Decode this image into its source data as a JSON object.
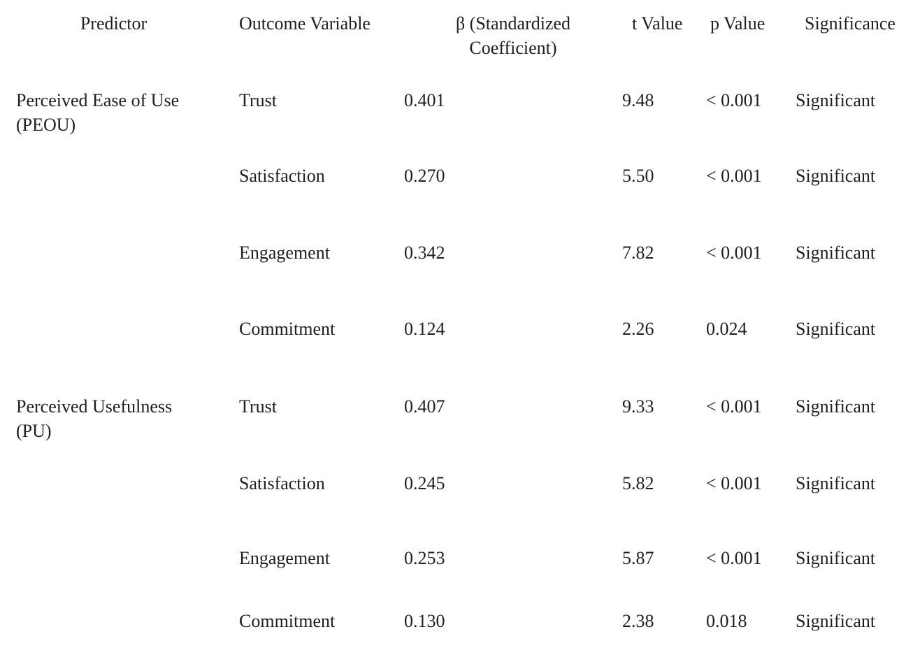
{
  "page": {
    "background_color": "#ffffff",
    "text_color": "#1f1f1f"
  },
  "table": {
    "headers": {
      "predictor": "Predictor",
      "outcome": "Outcome Variable",
      "beta": "β (Standardized Coefficient)",
      "t": "t Value",
      "p": "p Value",
      "significance": "Significance"
    },
    "rows": [
      {
        "predictor_line1": "Perceived Ease of Use",
        "predictor_line2": "(PEOU)",
        "outcome": "Trust",
        "beta": "0.401",
        "t": "9.48",
        "p": "< 0.001",
        "significance": "Significant"
      },
      {
        "predictor_line1": "",
        "predictor_line2": "",
        "outcome": "Satisfaction",
        "beta": "0.270",
        "t": "5.50",
        "p": "< 0.001",
        "significance": "Significant"
      },
      {
        "predictor_line1": "",
        "predictor_line2": "",
        "outcome": "Engagement",
        "beta": "0.342",
        "t": "7.82",
        "p": "< 0.001",
        "significance": "Significant"
      },
      {
        "predictor_line1": "",
        "predictor_line2": "",
        "outcome": "Commitment",
        "beta": "0.124",
        "t": "2.26",
        "p": "0.024",
        "significance": "Significant"
      },
      {
        "predictor_line1": "Perceived Usefulness",
        "predictor_line2": "(PU)",
        "outcome": "Trust",
        "beta": "0.407",
        "t": "9.33",
        "p": "< 0.001",
        "significance": "Significant"
      },
      {
        "predictor_line1": "",
        "predictor_line2": "",
        "outcome": "Satisfaction",
        "beta": "0.245",
        "t": "5.82",
        "p": "< 0.001",
        "significance": "Significant"
      },
      {
        "predictor_line1": "",
        "predictor_line2": "",
        "outcome": "Engagement",
        "beta": "0.253",
        "t": "5.87",
        "p": "< 0.001",
        "significance": "Significant"
      },
      {
        "predictor_line1": "",
        "predictor_line2": "",
        "outcome": "Commitment",
        "beta": "0.130",
        "t": "2.38",
        "p": "0.018",
        "significance": "Significant"
      }
    ]
  }
}
